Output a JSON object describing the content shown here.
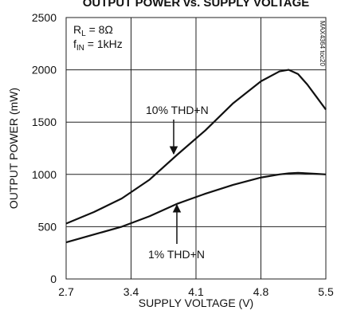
{
  "chart_data": {
    "type": "line",
    "title": "OUTPUT POWER vs. SUPPLY VOLTAGE",
    "xlabel": "SUPPLY VOLTAGE (V)",
    "ylabel": "OUTPUT POWER (mW)",
    "conditions": [
      {
        "main": "R",
        "sub": "L",
        "rest": " = 8Ω"
      },
      {
        "main": "f",
        "sub": "IN",
        "rest": " = 1kHz"
      }
    ],
    "figure_id": "MAX4364 toc20",
    "x": [
      2.7,
      3.0,
      3.3,
      3.6,
      3.9,
      4.2,
      4.5,
      4.8,
      5.0,
      5.1,
      5.2,
      5.3,
      5.4,
      5.5
    ],
    "series": [
      {
        "name": "10% THD+N",
        "color": "#111111",
        "values": [
          530,
          640,
          770,
          950,
          1190,
          1420,
          1680,
          1890,
          1985,
          2000,
          1960,
          1860,
          1740,
          1620
        ]
      },
      {
        "name": "1% THD+N",
        "color": "#111111",
        "values": [
          350,
          425,
          500,
          600,
          720,
          815,
          900,
          970,
          1000,
          1010,
          1015,
          1010,
          1005,
          1000
        ]
      }
    ],
    "xlim": [
      2.7,
      5.5
    ],
    "xticks": [
      2.7,
      3.4,
      4.1,
      4.8,
      5.5
    ],
    "ylim": [
      0,
      2500
    ],
    "yticks": [
      0,
      500,
      1000,
      1500,
      2000,
      2500
    ],
    "grid": true
  }
}
